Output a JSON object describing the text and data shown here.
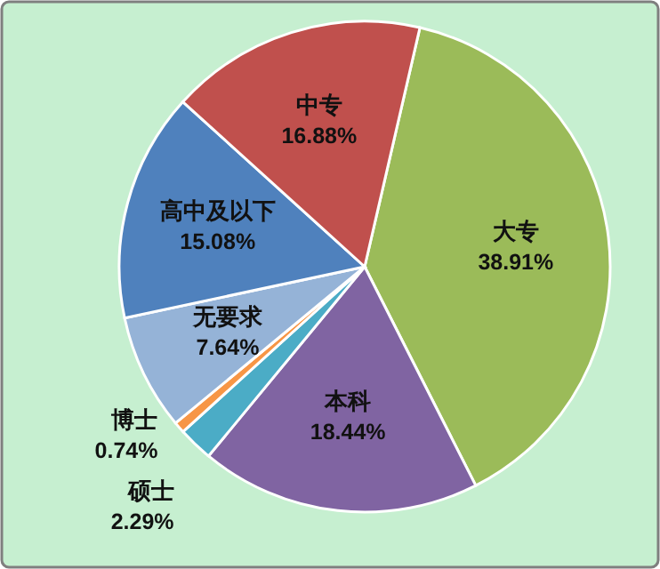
{
  "chart_data": {
    "type": "pie",
    "categories": [
      "大专",
      "本科",
      "硕士",
      "博士",
      "无要求",
      "高中及以下",
      "中专"
    ],
    "values": [
      38.91,
      18.44,
      2.29,
      0.74,
      7.64,
      15.08,
      16.88
    ],
    "value_labels": [
      "38.91%",
      "18.44%",
      "2.29%",
      "0.74%",
      "7.64%",
      "15.08%",
      "16.88%"
    ],
    "colors": [
      "#9bbb59",
      "#8064a2",
      "#4bacc6",
      "#f79646",
      "#95b3d7",
      "#4f81bd",
      "#c0504d"
    ]
  }
}
